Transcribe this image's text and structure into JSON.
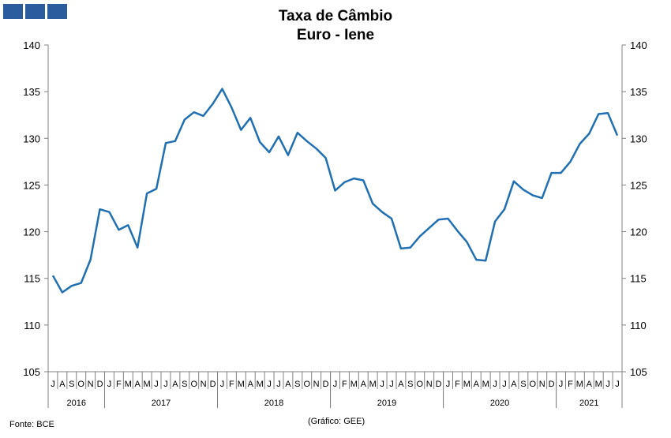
{
  "header": {
    "title_line1": "Taxa de Câmbio",
    "title_line2": "Euro - Iene"
  },
  "footer": {
    "source": "Fonte: BCE",
    "credit": "(Gráfico: GEE)"
  },
  "chart_data": {
    "type": "line",
    "title": "Taxa de Câmbio Euro - Iene",
    "ylim": [
      105,
      140
    ],
    "y_ticks": [
      105,
      110,
      115,
      120,
      125,
      130,
      135,
      140
    ],
    "y_axis_both_sides": true,
    "grid": false,
    "x_month_labels": [
      "J",
      "A",
      "S",
      "O",
      "N",
      "D",
      "J",
      "F",
      "M",
      "A",
      "M",
      "J",
      "J",
      "A",
      "S",
      "O",
      "N",
      "D",
      "J",
      "F",
      "M",
      "A",
      "M",
      "J",
      "J",
      "A",
      "S",
      "O",
      "N",
      "D",
      "J",
      "F",
      "M",
      "A",
      "M",
      "J",
      "J",
      "A",
      "S",
      "O",
      "N",
      "D",
      "J",
      "F",
      "M",
      "A",
      "M",
      "J",
      "J",
      "A",
      "S",
      "O",
      "N",
      "D",
      "J",
      "F",
      "M",
      "A",
      "M",
      "J",
      "J"
    ],
    "year_groups": [
      {
        "label": "2016",
        "start": 0,
        "count": 6
      },
      {
        "label": "2017",
        "start": 6,
        "count": 12
      },
      {
        "label": "2018",
        "start": 18,
        "count": 12
      },
      {
        "label": "2019",
        "start": 30,
        "count": 12
      },
      {
        "label": "2020",
        "start": 42,
        "count": 12
      },
      {
        "label": "2021",
        "start": 54,
        "count": 7
      }
    ],
    "series": [
      {
        "color": "#1f6fb2",
        "values": [
          115.3,
          113.5,
          114.2,
          114.5,
          117.0,
          122.4,
          122.1,
          120.2,
          120.7,
          118.3,
          124.1,
          124.6,
          129.5,
          129.7,
          132.0,
          132.8,
          132.4,
          133.7,
          135.3,
          133.3,
          130.9,
          132.2,
          129.6,
          128.5,
          130.2,
          128.2,
          130.6,
          129.7,
          128.9,
          127.9,
          124.4,
          125.3,
          125.7,
          125.5,
          123.0,
          122.1,
          121.4,
          118.2,
          118.3,
          119.5,
          120.4,
          121.3,
          121.4,
          120.1,
          118.9,
          117.0,
          116.9,
          121.1,
          122.4,
          125.4,
          124.5,
          123.9,
          123.6,
          126.3,
          126.3,
          127.5,
          129.4,
          130.5,
          132.6,
          132.7,
          130.3
        ]
      }
    ]
  }
}
